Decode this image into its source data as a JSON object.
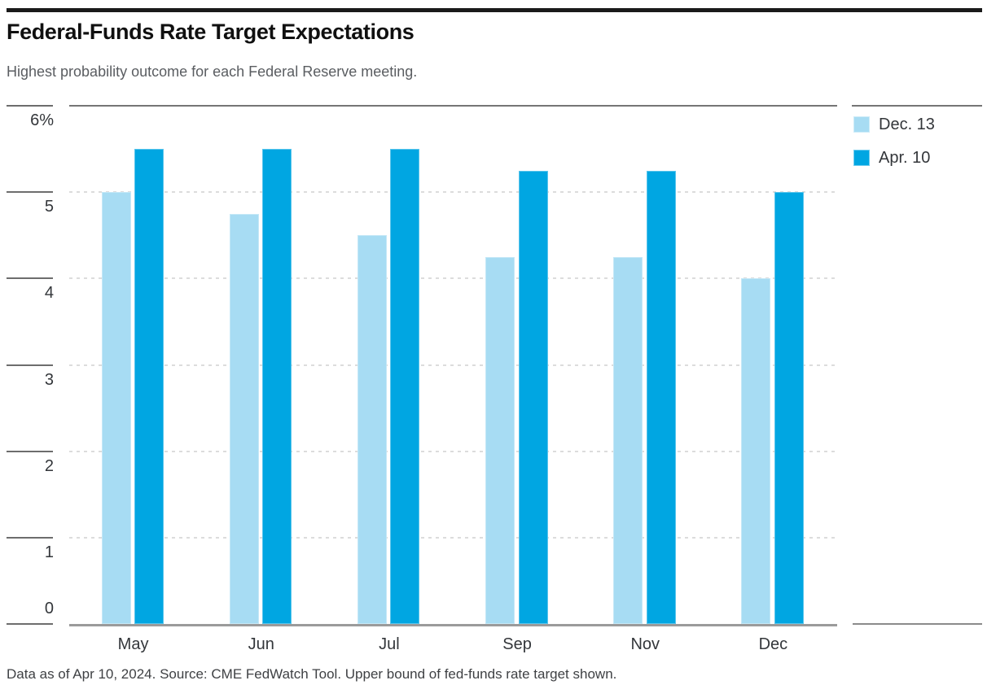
{
  "header": {
    "title": "Federal-Funds Rate Target Expectations",
    "subtitle": "Highest probability outcome for each Federal Reserve meeting."
  },
  "legend": {
    "items": [
      {
        "label": "Dec. 13",
        "color": "#a7dcf3"
      },
      {
        "label": "Apr. 10",
        "color": "#00a6e2"
      }
    ]
  },
  "footer": {
    "note": "Data as of Apr 10, 2024. Source: CME FedWatch Tool. Upper bound of fed-funds rate target shown."
  },
  "chart_data": {
    "type": "bar",
    "title": "Federal-Funds Rate Target Expectations",
    "subtitle": "Highest probability outcome for each Federal Reserve meeting.",
    "categories": [
      "May",
      "Jun",
      "Jul",
      "Sep",
      "Nov",
      "Dec"
    ],
    "series": [
      {
        "name": "Dec. 13",
        "color": "#a7dcf3",
        "values": [
          5.0,
          4.75,
          4.5,
          4.25,
          4.25,
          4.0
        ]
      },
      {
        "name": "Apr. 10",
        "color": "#00a6e2",
        "values": [
          5.5,
          5.5,
          5.5,
          5.25,
          5.25,
          5.0
        ]
      }
    ],
    "xlabel": "",
    "ylabel": "",
    "unit": "%",
    "ylim": [
      0,
      6
    ],
    "y_ticks": [
      {
        "value": 6,
        "label": "6%"
      },
      {
        "value": 5,
        "label": "5"
      },
      {
        "value": 4,
        "label": "4"
      },
      {
        "value": 3,
        "label": "3"
      },
      {
        "value": 2,
        "label": "2"
      },
      {
        "value": 1,
        "label": "1"
      },
      {
        "value": 0,
        "label": "0"
      }
    ],
    "grid": "horizontal-dashed",
    "legend_position": "top-right"
  }
}
